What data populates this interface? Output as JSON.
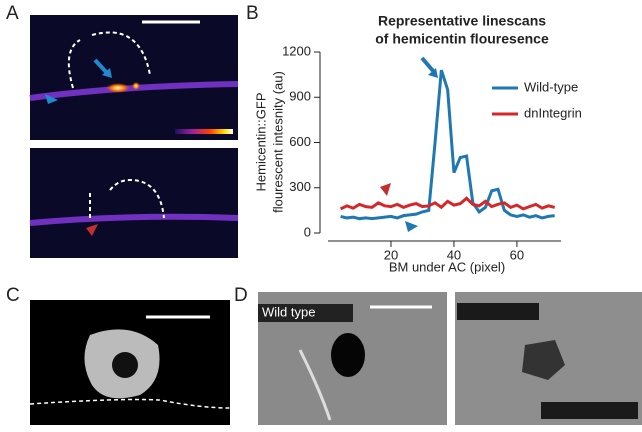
{
  "panel_labels": [
    "A",
    "B",
    "C",
    "D"
  ],
  "image_labels": {
    "wild_type": "Wild type"
  },
  "chart_data": {
    "type": "line",
    "title": [
      "Representative linescans",
      "of hemicentin flouresence"
    ],
    "x_label": "BM under AC (pixel)",
    "y_label": [
      "Hemicentin::GFP",
      "flourescent intesnity (au)"
    ],
    "x": [
      4,
      6,
      8,
      10,
      12,
      14,
      16,
      18,
      20,
      22,
      24,
      26,
      28,
      30,
      32,
      34,
      36,
      38,
      40,
      42,
      44,
      46,
      48,
      50,
      52,
      54,
      56,
      58,
      60,
      62,
      64,
      66,
      68,
      70,
      72
    ],
    "series": [
      {
        "name": "Wild-type",
        "color": "#1f77b4",
        "values": [
          110,
          100,
          105,
          95,
          100,
          95,
          100,
          105,
          110,
          100,
          115,
          120,
          125,
          140,
          150,
          600,
          1080,
          950,
          400,
          500,
          510,
          200,
          140,
          170,
          280,
          290,
          150,
          120,
          110,
          120,
          105,
          115,
          100,
          110,
          115
        ]
      },
      {
        "name": "dnIntegrin",
        "color": "#d62728",
        "values": [
          160,
          180,
          165,
          190,
          175,
          170,
          200,
          180,
          175,
          190,
          170,
          185,
          195,
          175,
          180,
          200,
          170,
          210,
          185,
          195,
          230,
          190,
          180,
          210,
          175,
          190,
          200,
          170,
          185,
          160,
          175,
          190,
          165,
          180,
          170
        ]
      }
    ],
    "xlim": [
      0,
      74
    ],
    "xticks": [
      20,
      40,
      60
    ],
    "ylim": [
      0,
      1200
    ],
    "yticks": [
      0,
      300,
      600,
      900,
      1200
    ],
    "legend": "upper right"
  }
}
